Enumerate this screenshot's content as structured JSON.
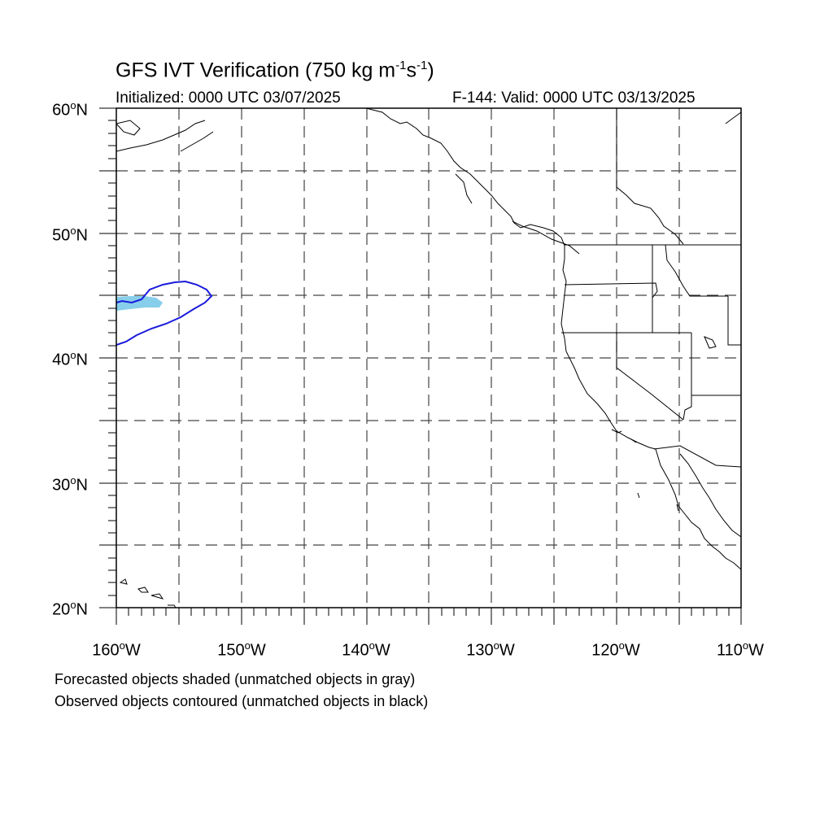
{
  "title": {
    "main": "GFS IVT Verification (750 kg m",
    "sup1": "-1",
    "mid": "s",
    "sup2": "-1",
    "close": ")"
  },
  "subtitle_left": "Initialized: 0000 UTC 03/07/2025",
  "subtitle_right": "F-144: Valid: 0000 UTC 03/13/2025",
  "lat_labels": [
    {
      "deg": "60",
      "hemi": "N"
    },
    {
      "deg": "50",
      "hemi": "N"
    },
    {
      "deg": "40",
      "hemi": "N"
    },
    {
      "deg": "30",
      "hemi": "N"
    },
    {
      "deg": "20",
      "hemi": "N"
    }
  ],
  "lon_labels": [
    {
      "deg": "160",
      "hemi": "W"
    },
    {
      "deg": "150",
      "hemi": "W"
    },
    {
      "deg": "140",
      "hemi": "W"
    },
    {
      "deg": "130",
      "hemi": "W"
    },
    {
      "deg": "120",
      "hemi": "W"
    },
    {
      "deg": "110",
      "hemi": "W"
    }
  ],
  "notes": [
    "Forecasted objects shaded (unmatched objects in gray)",
    "Observed objects contoured (unmatched objects in black)"
  ],
  "colors": {
    "forecast_shading": "#87ceeb",
    "observed_contour": "#1a1adc",
    "grid": "#444444",
    "coast": "#000000"
  }
}
